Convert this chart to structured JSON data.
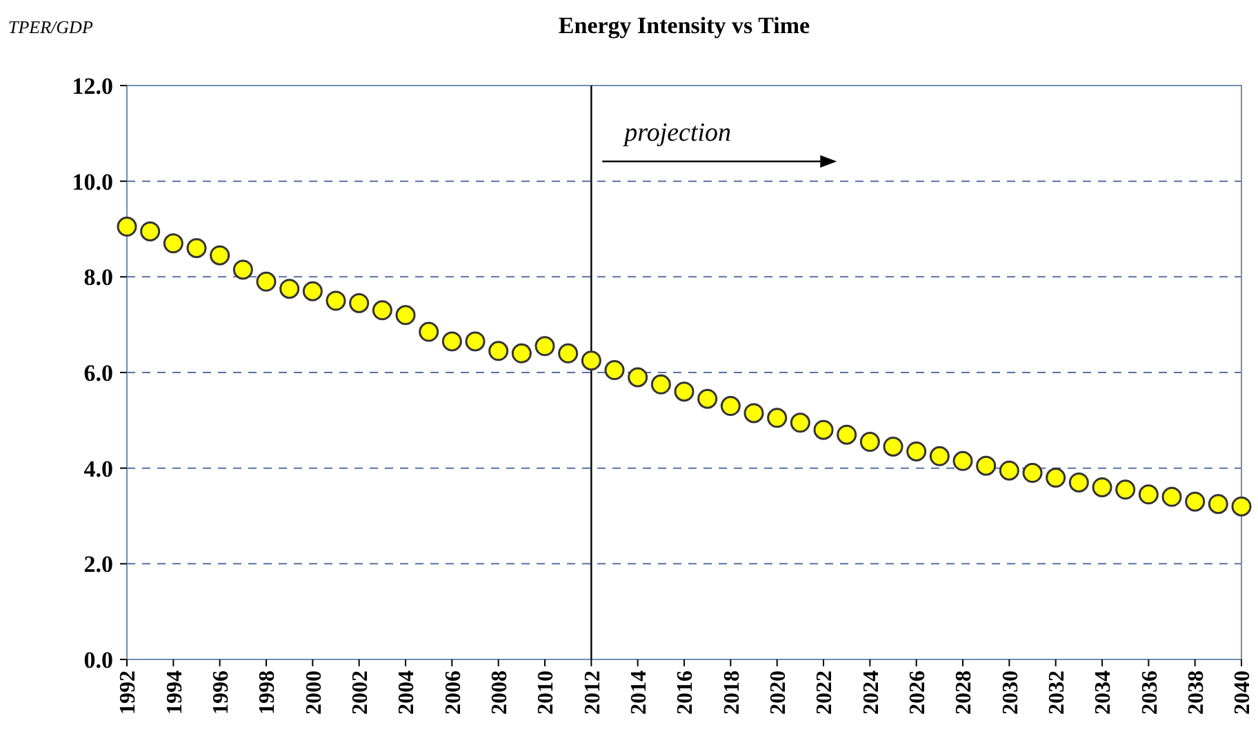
{
  "chart_data": {
    "type": "scatter",
    "title": "Energy Intensity vs Time",
    "ylabel": "TPER/GDP",
    "x": [
      1992,
      1993,
      1994,
      1995,
      1996,
      1997,
      1998,
      1999,
      2000,
      2001,
      2002,
      2003,
      2004,
      2005,
      2006,
      2007,
      2008,
      2009,
      2010,
      2011,
      2012,
      2013,
      2014,
      2015,
      2016,
      2017,
      2018,
      2019,
      2020,
      2021,
      2022,
      2023,
      2024,
      2025,
      2026,
      2027,
      2028,
      2029,
      2030,
      2031,
      2032,
      2033,
      2034,
      2035,
      2036,
      2037,
      2038,
      2039,
      2040
    ],
    "series": [
      {
        "color": "#ffff00",
        "values": [
          9.05,
          8.95,
          8.7,
          8.6,
          8.45,
          8.15,
          7.9,
          7.75,
          7.7,
          7.5,
          7.45,
          7.3,
          7.2,
          6.85,
          6.65,
          6.65,
          6.45,
          6.4,
          6.55,
          6.4,
          6.25,
          6.05,
          5.9,
          5.75,
          5.6,
          5.45,
          5.3,
          5.15,
          5.05,
          4.95,
          4.8,
          4.7,
          4.55,
          4.45,
          4.35,
          4.25,
          4.15,
          4.05,
          3.95,
          3.9,
          3.8,
          3.7,
          3.6,
          3.55,
          3.45,
          3.4,
          3.3,
          3.25,
          3.2
        ]
      }
    ],
    "xlim": [
      1992,
      2040
    ],
    "xticks": [
      1992,
      1994,
      1996,
      1998,
      2000,
      2002,
      2004,
      2006,
      2008,
      2010,
      2012,
      2014,
      2016,
      2018,
      2020,
      2022,
      2024,
      2026,
      2028,
      2030,
      2032,
      2034,
      2036,
      2038,
      2040
    ],
    "ylim": [
      0,
      12
    ],
    "yticks": [
      {
        "value": 0,
        "label": "0.0"
      },
      {
        "value": 2,
        "label": "2.0"
      },
      {
        "value": 4,
        "label": "4.0"
      },
      {
        "value": 6,
        "label": "6.0"
      },
      {
        "value": 8,
        "label": "8.0"
      },
      {
        "value": 10,
        "label": "10.0"
      },
      {
        "value": 12,
        "label": "12.0"
      }
    ],
    "grid": "y",
    "marker": "circle",
    "ref_lines": [
      {
        "axis": "x",
        "value": 2012,
        "color": "#000000"
      }
    ],
    "annotations": [
      "projection"
    ]
  }
}
